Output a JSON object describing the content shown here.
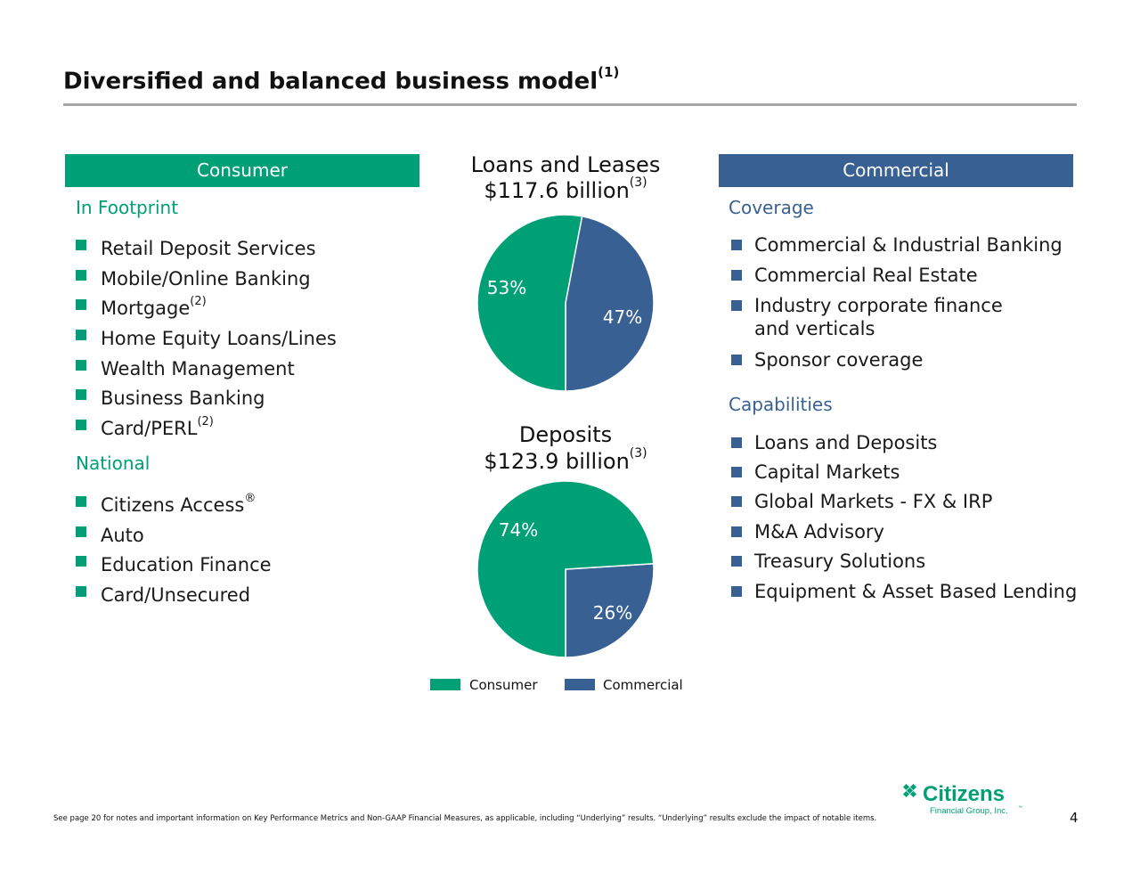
{
  "title": "Diversified and balanced business model",
  "title_sup": "(1)",
  "consumer": {
    "header": "Consumer",
    "in_footprint_label": "In Footprint",
    "in_footprint_items": [
      {
        "text": "Retail Deposit Services",
        "sup": ""
      },
      {
        "text": "Mobile/Online Banking",
        "sup": ""
      },
      {
        "text": "Mortgage",
        "sup": "(2)"
      },
      {
        "text": "Home Equity Loans/Lines",
        "sup": ""
      },
      {
        "text": "Wealth Management",
        "sup": ""
      },
      {
        "text": "Business Banking",
        "sup": ""
      },
      {
        "text": "Card/PERL",
        "sup": "(2)"
      }
    ],
    "national_label": "National",
    "national_items": [
      {
        "text": "Citizens Access",
        "sup": "®"
      },
      {
        "text": "Auto",
        "sup": ""
      },
      {
        "text": "Education Finance",
        "sup": ""
      },
      {
        "text": "Card/Unsecured",
        "sup": ""
      }
    ]
  },
  "commercial": {
    "header": "Commercial",
    "coverage_label": "Coverage",
    "coverage_items": [
      {
        "text": "Commercial & Industrial Banking"
      },
      {
        "text": "Commercial Real Estate"
      },
      {
        "text": "Industry corporate finance",
        "text2": "and verticals"
      },
      {
        "text": "Sponsor coverage"
      }
    ],
    "capabilities_label": "Capabilities",
    "capabilities_items": [
      {
        "text": "Loans and Deposits"
      },
      {
        "text": "Capital Markets"
      },
      {
        "text": "Global Markets - FX & IRP"
      },
      {
        "text": "M&A Advisory"
      },
      {
        "text": "Treasury Solutions"
      },
      {
        "text": "Equipment & Asset Based Lending"
      }
    ]
  },
  "colors": {
    "consumer": "#00a076",
    "commercial": "#386093"
  },
  "chart_data": [
    {
      "type": "pie",
      "title": "Loans and Leases",
      "subtitle": "$117.6 billion",
      "subtitle_sup": "(3)",
      "slices": [
        {
          "label": "Consumer",
          "value": 53,
          "display": "53%"
        },
        {
          "label": "Commercial",
          "value": 47,
          "display": "47%"
        }
      ]
    },
    {
      "type": "pie",
      "title": "Deposits",
      "subtitle": "$123.9 billion",
      "subtitle_sup": "(3)",
      "slices": [
        {
          "label": "Consumer",
          "value": 74,
          "display": "74%"
        },
        {
          "label": "Commercial",
          "value": 26,
          "display": "26%"
        }
      ]
    }
  ],
  "legend": [
    "Consumer",
    "Commercial"
  ],
  "footnote": "See page 20 for notes and important information on Key Performance Metrics and Non-GAAP Financial Measures, as applicable, including “Underlying” results. “Underlying” results exclude the impact of notable items.",
  "page_number": "4",
  "logo": {
    "name": "Citizens",
    "tagline": "Financial Group, Inc.",
    "tm": "™"
  }
}
